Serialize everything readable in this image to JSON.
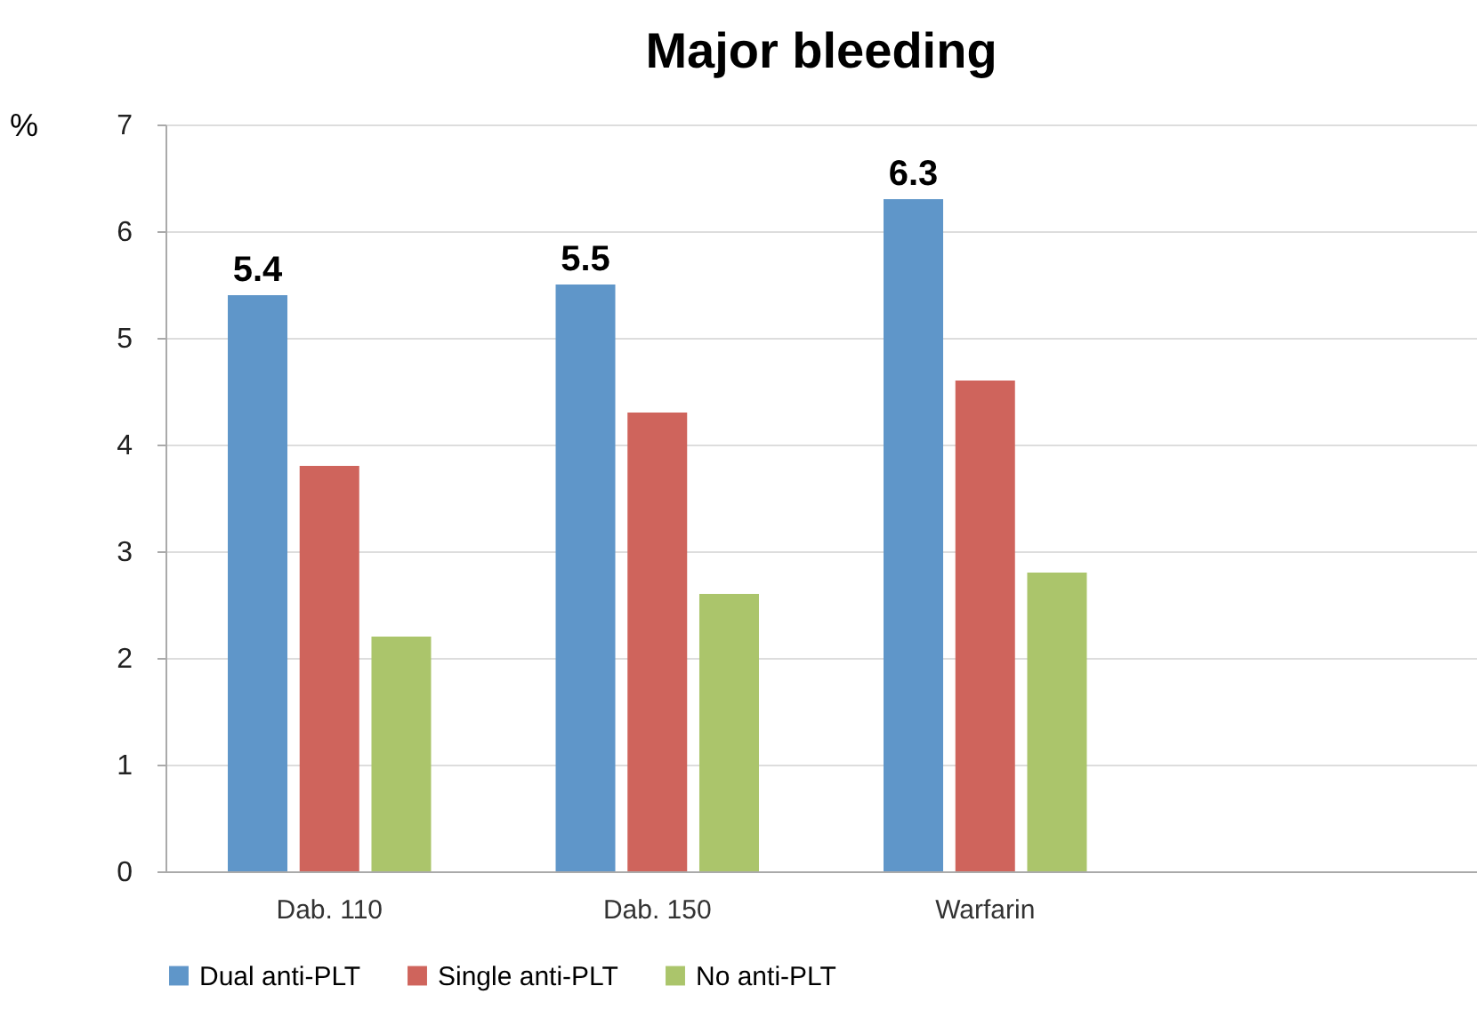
{
  "chart_data": {
    "type": "bar",
    "title": "Major bleeding",
    "ylabel": "%",
    "categories": [
      "Dab. 110",
      "Dab. 150",
      "Warfarin",
      null
    ],
    "series": [
      {
        "name": "Dual anti-PLT",
        "color": "#5f96c9",
        "values": [
          5.4,
          5.5,
          6.3,
          null
        ],
        "value_labels": [
          "5.4",
          "5.5",
          "6.3",
          null
        ]
      },
      {
        "name": "Single anti-PLT",
        "color": "#cf645c",
        "values": [
          3.8,
          4.3,
          4.6,
          null
        ]
      },
      {
        "name": "No anti-PLT",
        "color": "#abc56b",
        "values": [
          2.2,
          2.6,
          2.8,
          null
        ]
      }
    ],
    "ylim": [
      0,
      7
    ],
    "yticks": [
      0,
      1,
      2,
      3,
      4,
      5,
      6,
      7
    ],
    "grid": "y",
    "legend": "bottom"
  }
}
